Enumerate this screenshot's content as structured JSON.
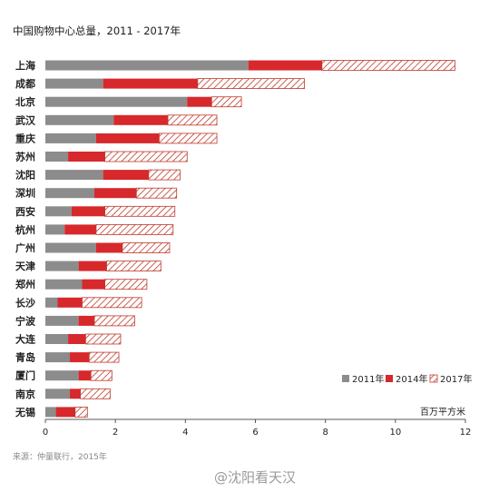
{
  "chart_data": {
    "type": "bar",
    "orientation": "horizontal",
    "stacked": true,
    "title": "中国购物中心总量，2011 - 2017年",
    "unit_label": "百万平方米",
    "categories": [
      "上海",
      "成都",
      "北京",
      "武汉",
      "重庆",
      "苏州",
      "沈阳",
      "深圳",
      "西安",
      "杭州",
      "广州",
      "天津",
      "郑州",
      "长沙",
      "宁波",
      "大连",
      "青岛",
      "厦门",
      "南京",
      "无锡"
    ],
    "series": [
      {
        "name": "2011年",
        "color": "#8c8c8c",
        "pattern": "solid",
        "values": [
          5.8,
          1.65,
          4.05,
          1.95,
          1.45,
          0.65,
          1.65,
          1.4,
          0.75,
          0.55,
          1.45,
          0.95,
          1.05,
          0.35,
          0.95,
          0.65,
          0.7,
          0.95,
          0.7,
          0.3
        ]
      },
      {
        "name": "2014年",
        "color": "#d7282c",
        "pattern": "solid",
        "values": [
          2.1,
          2.7,
          0.7,
          1.55,
          1.8,
          1.05,
          1.3,
          1.2,
          0.95,
          0.9,
          0.75,
          0.8,
          0.65,
          0.7,
          0.45,
          0.5,
          0.55,
          0.35,
          0.3,
          0.55
        ]
      },
      {
        "name": "2017年",
        "color": "#c0392b",
        "pattern": "hatch",
        "values": [
          3.8,
          3.05,
          0.85,
          1.4,
          1.65,
          2.35,
          0.9,
          1.15,
          2.0,
          2.2,
          1.35,
          1.55,
          1.2,
          1.7,
          1.15,
          1.0,
          0.85,
          0.6,
          0.85,
          0.35
        ]
      }
    ],
    "xlim": [
      0,
      12
    ],
    "xticks": [
      0,
      2,
      4,
      6,
      8,
      10,
      12
    ],
    "grid": false,
    "legend_position": "bottom-right"
  },
  "footer": {
    "source": "来源：仲量联行，2015年",
    "watermark": "@沈阳看天汉"
  }
}
